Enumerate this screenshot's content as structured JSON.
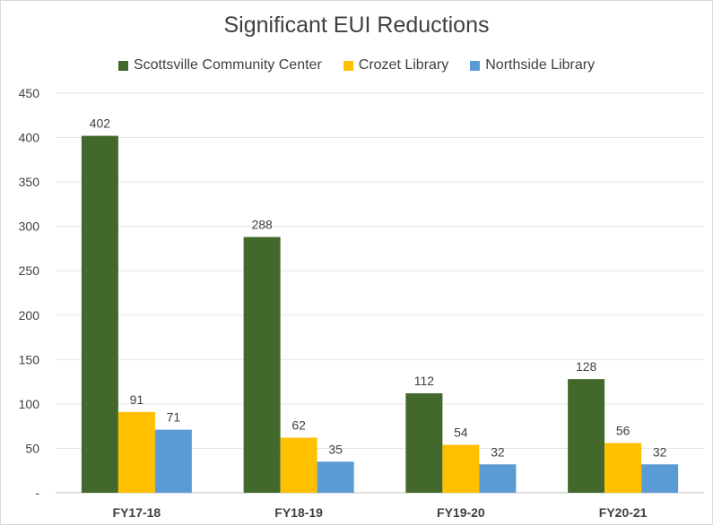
{
  "chart_data": {
    "type": "bar",
    "title": "Significant EUI Reductions",
    "categories": [
      "FY17-18",
      "FY18-19",
      "FY19-20",
      "FY20-21"
    ],
    "series": [
      {
        "name": "Scottsville Community Center",
        "color": "#43682B",
        "values": [
          402,
          288,
          112,
          128
        ]
      },
      {
        "name": "Crozet Library",
        "color": "#FFC000",
        "values": [
          91,
          62,
          54,
          56
        ]
      },
      {
        "name": "Northside Library",
        "color": "#5B9BD5",
        "values": [
          71,
          35,
          32,
          32
        ]
      }
    ],
    "yticks": [
      "-",
      "50",
      "100",
      "150",
      "200",
      "250",
      "300",
      "350",
      "400",
      "450"
    ],
    "ylim": [
      0,
      450
    ],
    "grid": true,
    "legend": "top",
    "xlabel": "",
    "ylabel": ""
  }
}
